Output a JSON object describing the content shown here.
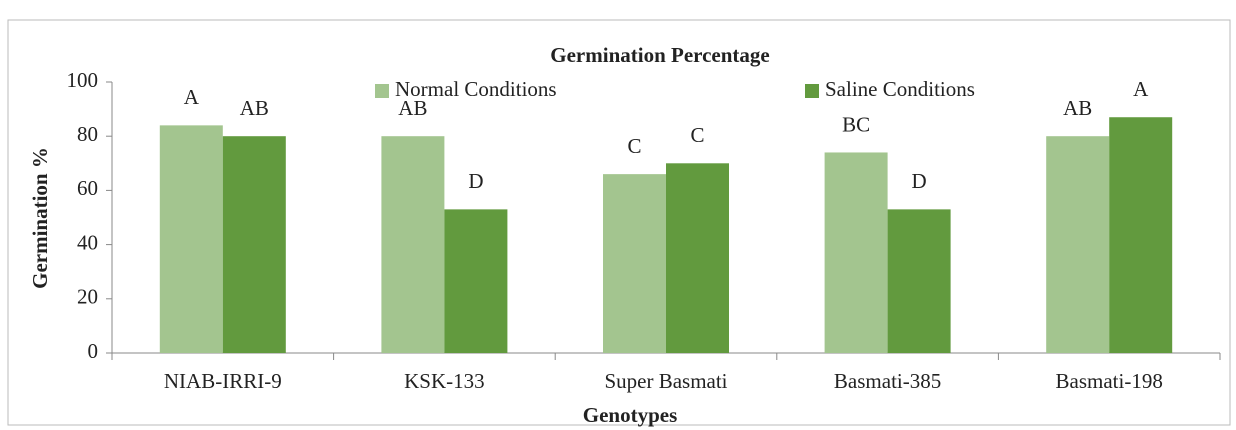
{
  "chart_data": {
    "type": "bar",
    "title": "Germination Percentage",
    "x_label": "Genotypes",
    "y_label": "Germination %",
    "categories": [
      "NIAB-IRRI-9",
      "KSK-133",
      "Super Basmati",
      "Basmati-385",
      "Basmati-198"
    ],
    "series": [
      {
        "name": "Normal Conditions",
        "color": "#a3c58f",
        "values": [
          84,
          80,
          66,
          74,
          80
        ],
        "letters": [
          "A",
          "AB",
          "C",
          "BC",
          "AB"
        ]
      },
      {
        "name": "Saline Conditions",
        "color": "#629a3e",
        "values": [
          80,
          53,
          70,
          53,
          87
        ],
        "letters": [
          "AB",
          "D",
          "C",
          "D",
          "A"
        ]
      }
    ],
    "ylim": [
      0,
      100
    ],
    "yticks": [
      0,
      20,
      40,
      60,
      80,
      100
    ],
    "grid": false
  }
}
